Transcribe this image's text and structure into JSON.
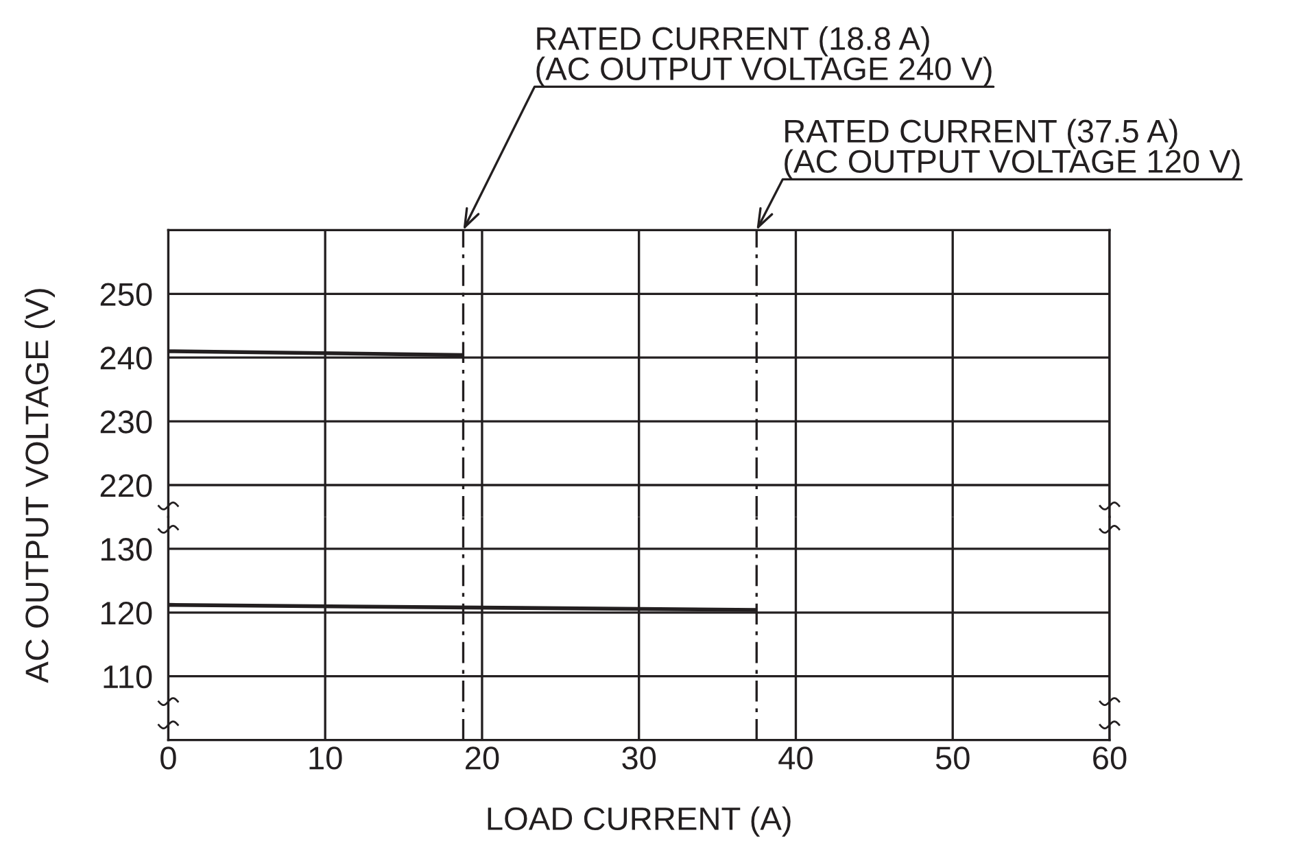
{
  "chart_data": [
    {
      "type": "line",
      "ylabel": "AC OUTPUT VOLTAGE (V)",
      "x": [
        0,
        18.8
      ],
      "series": [
        {
          "color": "#231f20",
          "values": [
            241.0,
            240.4
          ]
        }
      ],
      "xlim": [
        0,
        60
      ],
      "xticks": [
        0,
        10,
        20,
        30,
        40,
        50,
        60
      ],
      "ylim": [
        215,
        260
      ],
      "yticks": [
        220,
        230,
        240,
        250
      ],
      "grid": true,
      "tick_labels": "y",
      "ref_lines": [
        {
          "axis": "x",
          "value": 18.8,
          "label": "RATED CURRENT (18.8 A)\n(AC OUTPUT VOLTAGE 240 V)",
          "line_style": "dashdot",
          "color": "#231f20"
        },
        {
          "axis": "x",
          "value": 37.5,
          "label": "RATED CURRENT (37.5 A)\n(AC OUTPUT VOLTAGE 120 V)",
          "line_style": "dashdot",
          "color": "#231f20"
        }
      ]
    },
    {
      "type": "line",
      "xlabel": "LOAD CURRENT (A)",
      "x": [
        0,
        37.5
      ],
      "series": [
        {
          "color": "#231f20",
          "values": [
            121.2,
            120.4
          ]
        }
      ],
      "xlim": [
        0,
        60
      ],
      "xticks": [
        0,
        10,
        20,
        30,
        40,
        50,
        60
      ],
      "ylim": [
        100,
        135
      ],
      "yticks": [
        110,
        120,
        130
      ],
      "grid": true,
      "ref_lines": [
        {
          "axis": "x",
          "value": 18.8,
          "line_style": "dashdot",
          "color": "#231f20"
        },
        {
          "axis": "x",
          "value": 37.5,
          "line_style": "dashdot",
          "color": "#231f20"
        }
      ]
    }
  ]
}
